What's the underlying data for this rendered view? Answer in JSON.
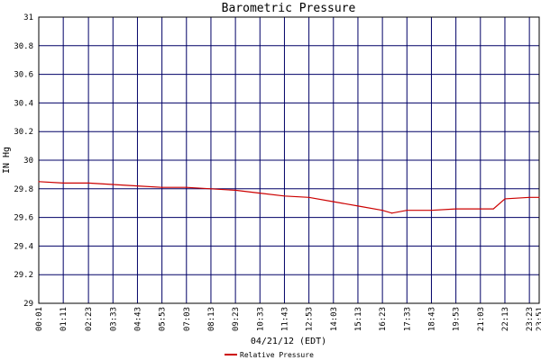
{
  "chart_data": {
    "type": "line",
    "title": "Barometric Pressure",
    "xlabel": "04/21/12 (EDT)",
    "ylabel": "IN Hg",
    "ylim": [
      29,
      31
    ],
    "yticks": [
      "29",
      "29.2",
      "29.4",
      "29.6",
      "29.8",
      "30",
      "30.2",
      "30.4",
      "30.6",
      "30.8",
      "31"
    ],
    "xticks": [
      "00:01",
      "01:11",
      "02:23",
      "03:33",
      "04:43",
      "05:53",
      "07:03",
      "08:13",
      "09:23",
      "10:33",
      "11:43",
      "12:53",
      "14:03",
      "15:13",
      "16:23",
      "17:33",
      "18:43",
      "19:53",
      "21:03",
      "22:13",
      "23:23",
      "23:51"
    ],
    "grid": true,
    "legend_position": "bottom-center",
    "colors": {
      "series": "#cc0000",
      "grid": "#000066",
      "frame": "#000000"
    },
    "series": [
      {
        "name": "Relative Pressure",
        "x": [
          "00:01",
          "01:11",
          "02:23",
          "03:33",
          "04:43",
          "05:53",
          "07:03",
          "08:13",
          "09:23",
          "10:33",
          "11:43",
          "12:53",
          "14:03",
          "15:13",
          "16:23",
          "16:50",
          "17:33",
          "18:43",
          "19:53",
          "21:03",
          "21:40",
          "22:13",
          "23:23",
          "23:51"
        ],
        "values": [
          29.85,
          29.84,
          29.84,
          29.83,
          29.82,
          29.81,
          29.81,
          29.8,
          29.79,
          29.77,
          29.75,
          29.74,
          29.71,
          29.68,
          29.65,
          29.63,
          29.65,
          29.65,
          29.66,
          29.66,
          29.66,
          29.73,
          29.74,
          29.74
        ]
      }
    ]
  }
}
